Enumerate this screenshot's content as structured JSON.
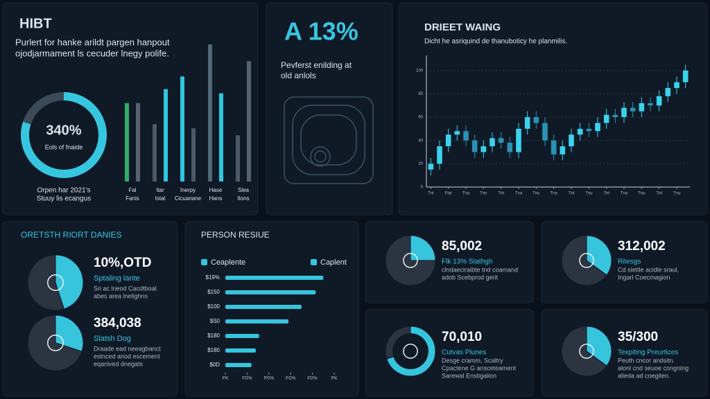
{
  "header": {
    "title": "HIBT",
    "subtitle": [
      "Purlert for hanke arildt pargen hanpout",
      "ojodjarmament ls cecuder lnegy polife."
    ]
  },
  "gauge": {
    "label": "340%",
    "caption": "Eols of fnaide",
    "note": [
      "Orpen har 2021's",
      "Stuuy lis ecangus"
    ],
    "value": 80,
    "max": 100
  },
  "columns": {
    "type": "bar",
    "ylim": [
      0,
      100
    ],
    "categories": [
      [
        "Fal",
        "Fanis"
      ],
      [
        "Itar",
        "Istal"
      ],
      [
        "Inerpy",
        "Cicuanane"
      ],
      [
        "Hase",
        "Hans"
      ],
      [
        "Slea",
        "Ilons"
      ]
    ],
    "series": [
      {
        "values": [
          56,
          41,
          75,
          98,
          33
        ],
        "colors": [
          "#2fae6a",
          "#4a5a68",
          "#2fc6e0",
          "#4f6878",
          "#4a5a68"
        ]
      },
      {
        "values": [
          56,
          66,
          38,
          63,
          86
        ],
        "colors": [
          "#56646f",
          "#2fc6e0",
          "#4a5a68",
          "#2fc6e0",
          "#56646f"
        ]
      }
    ]
  },
  "kpi": {
    "label": "A 13%",
    "text": [
      "Pevferst enilding at",
      "old anlols"
    ]
  },
  "candles": {
    "type": "candlestick",
    "title": "DRIEET WAING",
    "subtitle": "Dicht he asriquind de thanuboticy he planmilis.",
    "ylim": [
      0,
      110
    ],
    "yticks": [
      0,
      20,
      40,
      60,
      80,
      100
    ],
    "grid": true,
    "up_color": "#3ad2ec",
    "down_color": "#2a93b4",
    "open": [
      15,
      20,
      35,
      45,
      48,
      40,
      30,
      35,
      42,
      38,
      30,
      50,
      60,
      55,
      40,
      28,
      35,
      45,
      50,
      48,
      55,
      62,
      60,
      68,
      65,
      72,
      70,
      78,
      85,
      90
    ],
    "high": [
      25,
      40,
      50,
      53,
      53,
      45,
      40,
      47,
      47,
      43,
      55,
      65,
      65,
      60,
      45,
      40,
      50,
      55,
      55,
      60,
      67,
      67,
      73,
      73,
      77,
      77,
      83,
      90,
      95,
      105
    ],
    "low": [
      10,
      15,
      30,
      40,
      35,
      25,
      25,
      30,
      33,
      25,
      25,
      45,
      50,
      35,
      23,
      23,
      30,
      40,
      43,
      43,
      50,
      55,
      55,
      60,
      60,
      65,
      65,
      73,
      80,
      85
    ],
    "close": [
      20,
      35,
      45,
      48,
      40,
      30,
      35,
      42,
      38,
      30,
      50,
      60,
      55,
      40,
      28,
      35,
      45,
      50,
      48,
      55,
      62,
      60,
      68,
      65,
      72,
      70,
      78,
      85,
      90,
      100
    ],
    "xticks": [
      {
        "value": 0,
        "label": "Tnt"
      },
      {
        "value": 2,
        "label": "Flat"
      },
      {
        "value": 4,
        "label": "Tna"
      },
      {
        "value": 6,
        "label": "Tnn"
      },
      {
        "value": 8,
        "label": "Tnt"
      },
      {
        "value": 10,
        "label": "Tna"
      },
      {
        "value": 12,
        "label": "Tnu"
      },
      {
        "value": 14,
        "label": "Tna"
      },
      {
        "value": 16,
        "label": "Tnt"
      },
      {
        "value": 18,
        "label": "Tnu"
      },
      {
        "value": 20,
        "label": "Tnt"
      },
      {
        "value": 22,
        "label": "Tna"
      },
      {
        "value": 24,
        "label": "Tnu"
      },
      {
        "value": 26,
        "label": "Tnt"
      },
      {
        "value": 28,
        "label": "Tnu"
      }
    ]
  },
  "split": {
    "title": "ORETSTH RIORT DANIES",
    "items": [
      {
        "value_text": "10%,OTD",
        "label": "Sptaling lante",
        "desc": [
          "Sri ac lneod Cacdtboal.",
          "abes area lnelighns"
        ],
        "values": [
          45,
          55
        ],
        "colors": [
          "#36c5dd",
          "#2b3440"
        ]
      },
      {
        "value_text": "384,038",
        "label": "Slatsh Dog",
        "desc": [
          "Draade ead neeagbanct",
          "estnced anod escement",
          "eqanived dnegats"
        ],
        "values": [
          30,
          70
        ],
        "colors": [
          "#36c5dd",
          "#2b3440"
        ]
      }
    ]
  },
  "hbars": {
    "type": "hbar",
    "title": "PERSON RESIUE",
    "legend": [
      "Ceaplente",
      "Caplent"
    ],
    "color": "#36c5dd",
    "categories": [
      "$19%",
      "$150",
      "$100",
      "$S0",
      "$180",
      "$180",
      "$0D"
    ],
    "values": [
      90,
      83,
      70,
      58,
      31,
      28,
      24
    ],
    "xlim": [
      0,
      100
    ],
    "xticks": [
      {
        "value": 0,
        "label": "PK"
      },
      {
        "value": 20,
        "label": "F0%"
      },
      {
        "value": 40,
        "label": "P0%"
      },
      {
        "value": 60,
        "label": "F0%"
      },
      {
        "value": 80,
        "label": "F0%"
      },
      {
        "value": 100,
        "label": "PK"
      }
    ]
  },
  "cards": [
    {
      "value_text": "85,002",
      "label": "Flk 13% Stathgh",
      "desc": [
        "clndaeciraibte tnd coamand",
        "adob Scebprod gerit"
      ],
      "values": [
        25,
        75
      ],
      "colors": [
        "#36c5dd",
        "#2b3440"
      ],
      "donut": false
    },
    {
      "value_text": "312,002",
      "label": "Ritesgs",
      "desc": [
        "Cd siettle acidle sraul,",
        "Ingarl Coecmagion"
      ],
      "values": [
        35,
        65
      ],
      "colors": [
        "#36c5dd",
        "#2b3440"
      ],
      "donut": false
    },
    {
      "value_text": "70,010",
      "label": "Cutvas Piunes",
      "desc": [
        "Desge cramm, Scaltry",
        "Cpactene G ansceteament",
        "Sarewal Enstigalion"
      ],
      "values": [
        70,
        30
      ],
      "colors": [
        "#36c5dd",
        "#2b3440"
      ],
      "donut": true
    },
    {
      "value_text": "35/300",
      "label": "Texpiting Preurtices",
      "desc": [
        "Peuth cncor andsitn.",
        "alonl cnd seuoe congning",
        "alieda ad coegiten."
      ],
      "values": [
        35,
        65
      ],
      "colors": [
        "#36c5dd",
        "#2b3440"
      ],
      "donut": false
    }
  ]
}
